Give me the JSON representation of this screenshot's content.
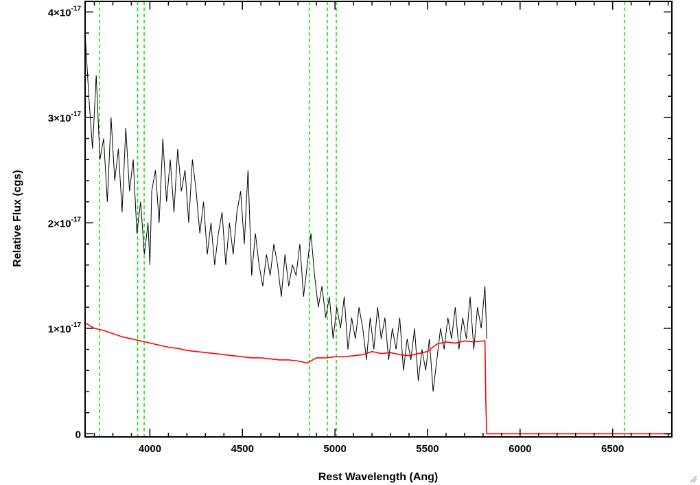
{
  "chart_data": {
    "type": "line",
    "xlabel": "Rest Wavelength (Ang)",
    "ylabel": "Relative Flux (cgs)",
    "xlim": [
      3650,
      6820
    ],
    "ylim": [
      -3e-19,
      4.1e-17
    ],
    "x_ticks": [
      {
        "value": 4000,
        "label": "4000"
      },
      {
        "value": 4500,
        "label": "4500"
      },
      {
        "value": 5000,
        "label": "5000"
      },
      {
        "value": 5500,
        "label": "5500"
      },
      {
        "value": 6000,
        "label": "6000"
      },
      {
        "value": 6500,
        "label": "6500"
      }
    ],
    "y_ticks": [
      {
        "value": 0,
        "mantissa": "0",
        "exponent": ""
      },
      {
        "value": 1e-17,
        "mantissa": "1×10",
        "exponent": "-17"
      },
      {
        "value": 2e-17,
        "mantissa": "2×10",
        "exponent": "-17"
      },
      {
        "value": 3e-17,
        "mantissa": "3×10",
        "exponent": "-17"
      },
      {
        "value": 4e-17,
        "mantissa": "4×10",
        "exponent": "-17"
      }
    ],
    "line_markers": {
      "color": "#00e000",
      "style": "dashed",
      "x": [
        3727,
        3934,
        3969,
        4861,
        4959,
        5007,
        6563
      ]
    },
    "series": [
      {
        "color": "#000000",
        "x": [
          3650,
          3670,
          3690,
          3710,
          3730,
          3750,
          3770,
          3790,
          3810,
          3830,
          3850,
          3870,
          3890,
          3910,
          3930,
          3950,
          3970,
          3990,
          4000,
          4010,
          4030,
          4050,
          4070,
          4090,
          4110,
          4130,
          4150,
          4170,
          4190,
          4210,
          4230,
          4250,
          4270,
          4290,
          4310,
          4330,
          4350,
          4370,
          4390,
          4410,
          4430,
          4450,
          4470,
          4490,
          4510,
          4530,
          4550,
          4570,
          4590,
          4610,
          4630,
          4650,
          4670,
          4690,
          4710,
          4730,
          4750,
          4770,
          4790,
          4810,
          4830,
          4850,
          4870,
          4890,
          4910,
          4930,
          4950,
          4970,
          4990,
          5010,
          5030,
          5050,
          5070,
          5090,
          5110,
          5130,
          5150,
          5170,
          5190,
          5210,
          5230,
          5250,
          5270,
          5290,
          5310,
          5330,
          5350,
          5370,
          5390,
          5410,
          5430,
          5450,
          5470,
          5490,
          5510,
          5530,
          5550,
          5570,
          5590,
          5610,
          5630,
          5650,
          5670,
          5690,
          5710,
          5730,
          5750,
          5770,
          5790,
          5810,
          5820
        ],
        "y": [
          3.8e-17,
          3.2e-17,
          2.7e-17,
          3.4e-17,
          2.6e-17,
          2.8e-17,
          2.2e-17,
          3e-17,
          2.4e-17,
          2.7e-17,
          2.1e-17,
          2.9e-17,
          2.3e-17,
          2.6e-17,
          1.9e-17,
          2.2e-17,
          1.7e-17,
          2e-17,
          1.6e-17,
          2.3e-17,
          2.5e-17,
          2e-17,
          2.8e-17,
          2.2e-17,
          2.6e-17,
          2.1e-17,
          2.7e-17,
          2.3e-17,
          2.5e-17,
          2e-17,
          2.6e-17,
          2.3e-17,
          1.9e-17,
          2.2e-17,
          1.7e-17,
          2e-17,
          1.6e-17,
          1.9e-17,
          2.1e-17,
          1.6e-17,
          2e-17,
          1.7e-17,
          2.1e-17,
          2.3e-17,
          1.8e-17,
          2.5e-17,
          1.5e-17,
          1.9e-17,
          1.6e-17,
          1.4e-17,
          1.7e-17,
          1.5e-17,
          1.8e-17,
          1.6e-17,
          1.3e-17,
          1.7e-17,
          1.4e-17,
          1.6e-17,
          1.5e-17,
          1.8e-17,
          1.3e-17,
          1.6e-17,
          1.9e-17,
          1.5e-17,
          1.2e-17,
          1.4e-17,
          1.1e-17,
          1.3e-17,
          9e-18,
          1.2e-17,
          1e-17,
          1.3e-17,
          8e-18,
          1.1e-17,
          9e-18,
          1.2e-17,
          1e-17,
          7e-18,
          1.1e-17,
          8e-18,
          1.2e-17,
          9e-18,
          1.1e-17,
          7e-18,
          1e-17,
          8e-18,
          1.1e-17,
          6e-18,
          9e-18,
          7e-18,
          1e-17,
          5e-18,
          8e-18,
          6e-18,
          9e-18,
          4e-18,
          7e-18,
          1e-17,
          8e-18,
          1.1e-17,
          9e-18,
          1.2e-17,
          8e-18,
          1.1e-17,
          9e-18,
          1.3e-17,
          8e-18,
          1.2e-17,
          1e-17,
          1.4e-17,
          9e-18
        ]
      },
      {
        "color": "#ff0000",
        "x": [
          3650,
          3700,
          3750,
          3800,
          3850,
          3900,
          3950,
          4000,
          4050,
          4100,
          4150,
          4200,
          4250,
          4300,
          4350,
          4400,
          4450,
          4500,
          4550,
          4600,
          4650,
          4700,
          4750,
          4800,
          4850,
          4880,
          4900,
          4950,
          5000,
          5050,
          5100,
          5150,
          5200,
          5250,
          5300,
          5350,
          5400,
          5450,
          5500,
          5550,
          5600,
          5650,
          5700,
          5750,
          5800,
          5810,
          5815,
          5820,
          6000,
          6200,
          6400,
          6600,
          6820
        ],
        "y": [
          1.05e-17,
          1e-17,
          9.8e-18,
          9.5e-18,
          9.2e-18,
          9e-18,
          8.8e-18,
          8.6e-18,
          8.4e-18,
          8.2e-18,
          8.1e-18,
          7.9e-18,
          7.8e-18,
          7.7e-18,
          7.6e-18,
          7.5e-18,
          7.4e-18,
          7.3e-18,
          7.2e-18,
          7.2e-18,
          7.1e-18,
          7e-18,
          7e-18,
          6.9e-18,
          6.7e-18,
          7e-18,
          7.2e-18,
          7.2e-18,
          7.3e-18,
          7.3e-18,
          7.4e-18,
          7.5e-18,
          7.8e-18,
          7.6e-18,
          7.7e-18,
          7.5e-18,
          7.4e-18,
          7.6e-18,
          7.8e-18,
          8.5e-18,
          8.7e-18,
          8.6e-18,
          8.8e-18,
          8.7e-18,
          8.8e-18,
          8.8e-18,
          3e-18,
          0,
          0,
          0,
          0,
          0,
          0
        ]
      }
    ]
  }
}
